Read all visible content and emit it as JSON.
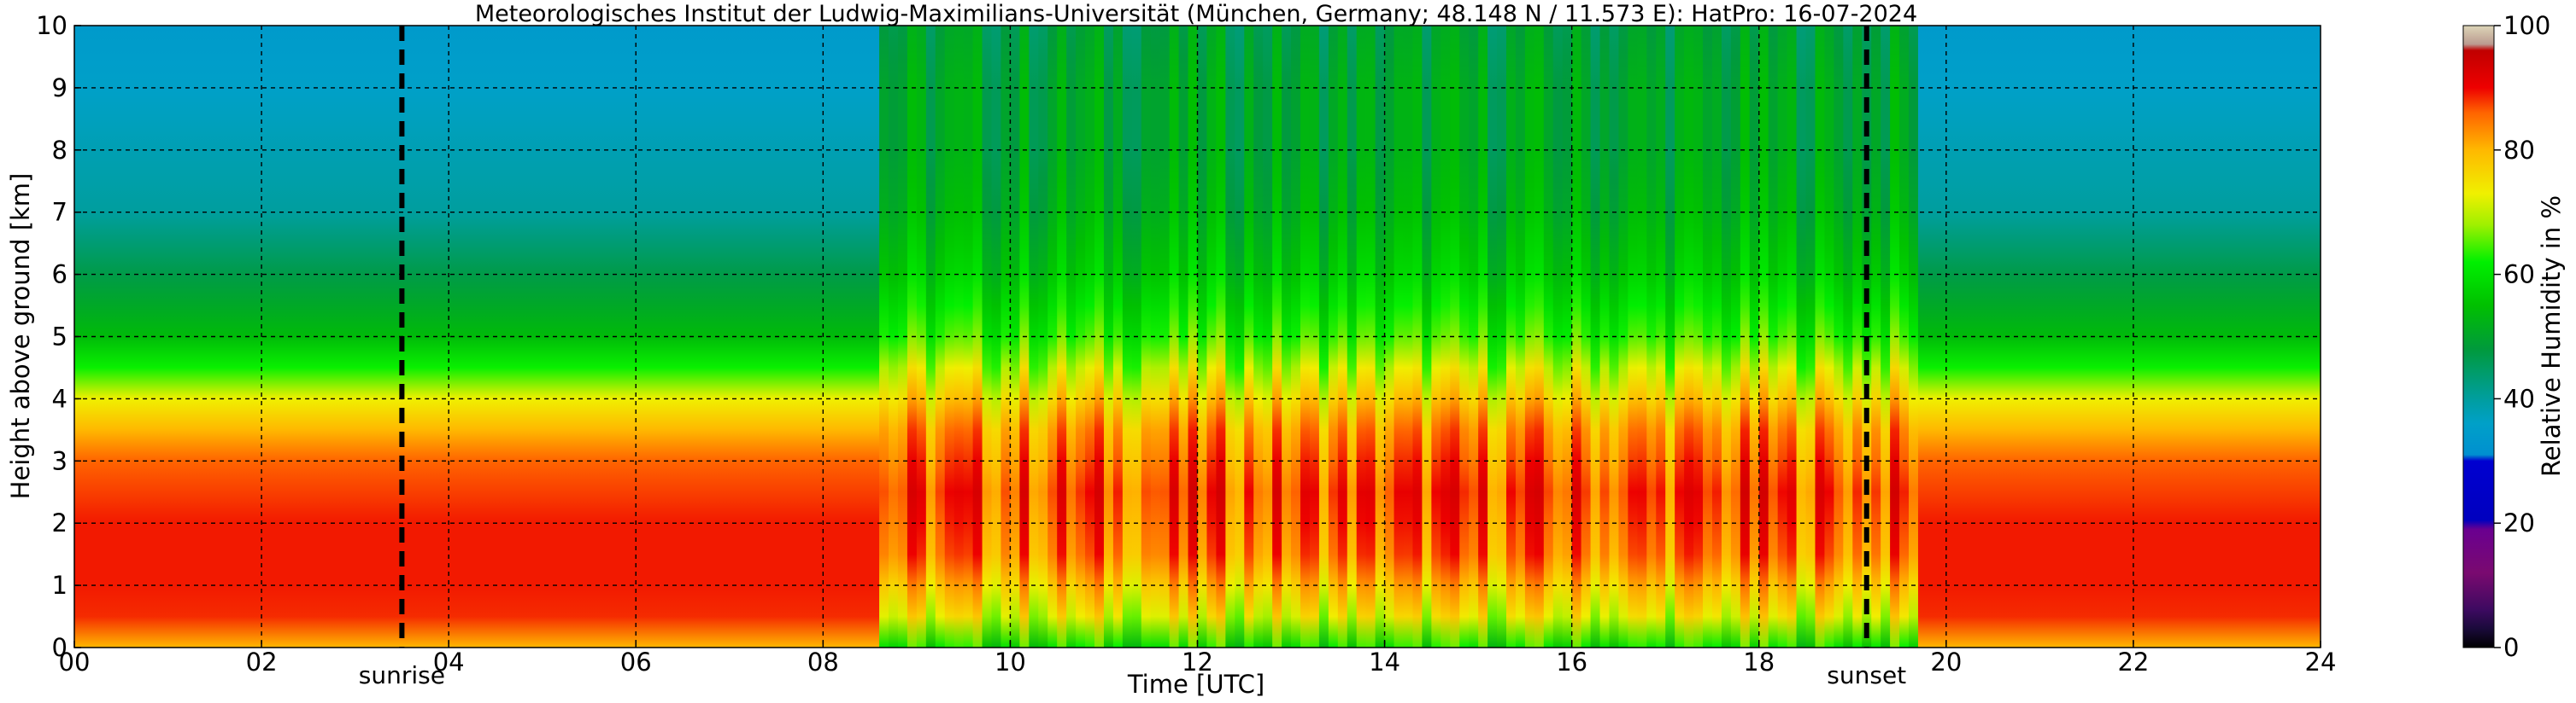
{
  "chart_data": {
    "type": "heatmap",
    "title": "Meteorologisches Institut der Ludwig-Maximilians-Universität (München, Germany; 48.148 N / 11.573 E):    HatPro: 16-07-2024",
    "xlabel": "Time [UTC]",
    "ylabel": "Height above ground [km]",
    "xlim": [
      0,
      24
    ],
    "ylim": [
      0,
      10
    ],
    "x_ticks": [
      "00",
      "02",
      "04",
      "06",
      "08",
      "10",
      "12",
      "14",
      "16",
      "18",
      "20",
      "22",
      "24"
    ],
    "x_tick_values": [
      0,
      2,
      4,
      6,
      8,
      10,
      12,
      14,
      16,
      18,
      20,
      22,
      24
    ],
    "y_ticks": [
      "0",
      "1",
      "2",
      "3",
      "4",
      "5",
      "6",
      "7",
      "8",
      "9",
      "10"
    ],
    "y_tick_values": [
      0,
      1,
      2,
      3,
      4,
      5,
      6,
      7,
      8,
      9,
      10
    ],
    "grid": true,
    "colorbar": {
      "label": "Relative Humidity in %",
      "range": [
        0,
        100
      ],
      "ticks": [
        "0",
        "20",
        "40",
        "60",
        "80",
        "100"
      ],
      "tick_values": [
        0,
        20,
        40,
        60,
        80,
        100
      ]
    },
    "annotations": [
      {
        "label": "sunrise",
        "time": 3.5
      },
      {
        "label": "sunset",
        "time": 19.15
      }
    ],
    "humidity_profile_quiet": [
      {
        "height": 0.0,
        "rh": 80
      },
      {
        "height": 0.3,
        "rh": 88
      },
      {
        "height": 1.0,
        "rh": 89
      },
      {
        "height": 2.0,
        "rh": 89
      },
      {
        "height": 3.0,
        "rh": 86
      },
      {
        "height": 3.5,
        "rh": 80
      },
      {
        "height": 4.0,
        "rh": 73
      },
      {
        "height": 4.4,
        "rh": 64
      },
      {
        "height": 5.0,
        "rh": 54
      },
      {
        "height": 6.0,
        "rh": 47
      },
      {
        "height": 7.0,
        "rh": 40
      },
      {
        "height": 8.0,
        "rh": 38
      },
      {
        "height": 9.0,
        "rh": 36
      },
      {
        "height": 10.0,
        "rh": 34
      }
    ],
    "humidity_profile_daytime": [
      {
        "height": 0.0,
        "rh": 60
      },
      {
        "height": 0.3,
        "rh": 70
      },
      {
        "height": 0.8,
        "rh": 76
      },
      {
        "height": 1.5,
        "rh": 84
      },
      {
        "height": 2.5,
        "rh": 87
      },
      {
        "height": 3.5,
        "rh": 82
      },
      {
        "height": 4.3,
        "rh": 72
      },
      {
        "height": 5.0,
        "rh": 63
      },
      {
        "height": 6.0,
        "rh": 56
      },
      {
        "height": 7.0,
        "rh": 52
      },
      {
        "height": 8.0,
        "rh": 50
      },
      {
        "height": 9.0,
        "rh": 50
      },
      {
        "height": 10.0,
        "rh": 48
      }
    ],
    "daytime_period": [
      8.6,
      19.6
    ]
  }
}
